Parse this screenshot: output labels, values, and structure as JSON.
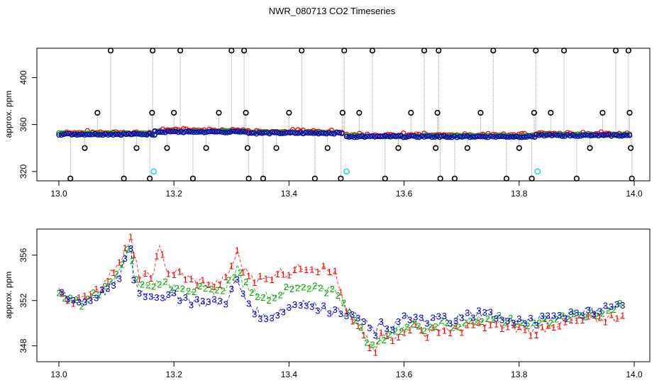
{
  "title": "NWR_080713  CO2 Timeseries",
  "chart_data": [
    {
      "type": "scatter",
      "title": "NWR_080713  CO2 Timeseries",
      "xlabel": "",
      "ylabel": "approx. ppm",
      "xlim": [
        13.0,
        14.0
      ],
      "ylim": [
        312,
        425
      ],
      "x_ticks": [
        "13.0",
        "13.2",
        "13.4",
        "13.6",
        "13.8",
        "14.0"
      ],
      "y_ticks": [
        "320",
        "360",
        "400"
      ],
      "colors": {
        "series1": "#ff0000",
        "series2": "#00aa00",
        "series3": "#0000cc",
        "markers": "#000000",
        "flag": "#33dddd",
        "connector": "#999999"
      },
      "segments": [
        {
          "x_start": 13.0,
          "x_end": 13.167,
          "level": 352
        },
        {
          "x_start": 13.167,
          "x_end": 13.33,
          "level": 354
        },
        {
          "x_start": 13.33,
          "x_end": 13.495,
          "level": 353
        },
        {
          "x_start": 13.5,
          "x_end": 13.665,
          "level": 350
        },
        {
          "x_start": 13.665,
          "x_end": 13.83,
          "level": 350
        },
        {
          "x_start": 13.83,
          "x_end": 13.995,
          "level": 351
        }
      ],
      "cal_markers": [
        {
          "x": 13.02,
          "y": 314
        },
        {
          "x": 13.045,
          "y": 340
        },
        {
          "x": 13.067,
          "y": 370
        },
        {
          "x": 13.09,
          "y": 423
        },
        {
          "x": 13.113,
          "y": 314
        },
        {
          "x": 13.135,
          "y": 340
        },
        {
          "x": 13.158,
          "y": 314
        },
        {
          "x": 13.162,
          "y": 370
        },
        {
          "x": 13.163,
          "y": 423
        },
        {
          "x": 13.188,
          "y": 340
        },
        {
          "x": 13.2,
          "y": 370
        },
        {
          "x": 13.211,
          "y": 423
        },
        {
          "x": 13.233,
          "y": 314
        },
        {
          "x": 13.256,
          "y": 340
        },
        {
          "x": 13.278,
          "y": 370
        },
        {
          "x": 13.3,
          "y": 423
        },
        {
          "x": 13.322,
          "y": 423
        },
        {
          "x": 13.325,
          "y": 370
        },
        {
          "x": 13.328,
          "y": 340
        },
        {
          "x": 13.33,
          "y": 314
        },
        {
          "x": 13.355,
          "y": 314
        },
        {
          "x": 13.378,
          "y": 340
        },
        {
          "x": 13.4,
          "y": 370
        },
        {
          "x": 13.422,
          "y": 423
        },
        {
          "x": 13.445,
          "y": 314
        },
        {
          "x": 13.467,
          "y": 340
        },
        {
          "x": 13.49,
          "y": 314
        },
        {
          "x": 13.493,
          "y": 370
        },
        {
          "x": 13.496,
          "y": 423
        },
        {
          "x": 13.522,
          "y": 370
        },
        {
          "x": 13.545,
          "y": 423
        },
        {
          "x": 13.567,
          "y": 314
        },
        {
          "x": 13.59,
          "y": 340
        },
        {
          "x": 13.612,
          "y": 370
        },
        {
          "x": 13.635,
          "y": 423
        },
        {
          "x": 13.655,
          "y": 340
        },
        {
          "x": 13.658,
          "y": 370
        },
        {
          "x": 13.66,
          "y": 423
        },
        {
          "x": 13.663,
          "y": 314
        },
        {
          "x": 13.688,
          "y": 314
        },
        {
          "x": 13.71,
          "y": 340
        },
        {
          "x": 13.733,
          "y": 370
        },
        {
          "x": 13.755,
          "y": 423
        },
        {
          "x": 13.778,
          "y": 314
        },
        {
          "x": 13.8,
          "y": 340
        },
        {
          "x": 13.822,
          "y": 314
        },
        {
          "x": 13.826,
          "y": 370
        },
        {
          "x": 13.829,
          "y": 423
        },
        {
          "x": 13.855,
          "y": 370
        },
        {
          "x": 13.878,
          "y": 423
        },
        {
          "x": 13.9,
          "y": 314
        },
        {
          "x": 13.923,
          "y": 340
        },
        {
          "x": 13.945,
          "y": 370
        },
        {
          "x": 13.968,
          "y": 423
        },
        {
          "x": 13.99,
          "y": 423
        },
        {
          "x": 13.992,
          "y": 370
        },
        {
          "x": 13.994,
          "y": 340
        },
        {
          "x": 13.996,
          "y": 314
        }
      ],
      "flag_points": [
        {
          "x": 13.165,
          "y": 320
        },
        {
          "x": 13.5,
          "y": 320
        },
        {
          "x": 13.832,
          "y": 320
        }
      ]
    },
    {
      "type": "line",
      "xlabel": "",
      "ylabel": "approx. ppm",
      "xlim": [
        13.0,
        14.0
      ],
      "ylim": [
        346.6,
        358.3
      ],
      "x_ticks": [
        "13.0",
        "13.2",
        "13.4",
        "13.6",
        "13.8",
        "14.0"
      ],
      "y_ticks": [
        "348",
        "352",
        "356"
      ],
      "x": [
        13.0,
        13.02,
        13.04,
        13.06,
        13.08,
        13.1,
        13.125,
        13.13,
        13.14,
        13.16,
        13.175,
        13.19,
        13.21,
        13.23,
        13.25,
        13.27,
        13.29,
        13.31,
        13.32,
        13.34,
        13.36,
        13.38,
        13.4,
        13.42,
        13.44,
        13.46,
        13.48,
        13.5,
        13.52,
        13.54,
        13.55,
        13.56,
        13.58,
        13.6,
        13.62,
        13.64,
        13.66,
        13.68,
        13.7,
        13.72,
        13.74,
        13.76,
        13.78,
        13.8,
        13.82,
        13.84,
        13.86,
        13.88,
        13.9,
        13.92,
        13.94,
        13.96,
        13.98
      ],
      "series": [
        {
          "name": "1",
          "color": "#ff0000",
          "values": [
            352.8,
            352.2,
            352.0,
            352.8,
            353.5,
            355.2,
            357.4,
            356.0,
            354.2,
            354.0,
            356.5,
            354.6,
            354.4,
            353.8,
            353.6,
            353.4,
            353.9,
            356.2,
            354.8,
            354.0,
            353.8,
            354.6,
            354.4,
            355.0,
            355.0,
            354.8,
            354.3,
            350.8,
            350.0,
            348.0,
            347.4,
            349.0,
            348.8,
            349.5,
            349.8,
            349.0,
            349.6,
            349.4,
            349.5,
            349.8,
            350.0,
            349.9,
            349.6,
            349.5,
            349.2,
            349.5,
            349.9,
            350.0,
            350.2,
            350.3,
            350.4,
            350.5,
            350.7
          ]
        },
        {
          "name": "2",
          "color": "#00aa00",
          "values": [
            352.6,
            352.0,
            351.8,
            352.4,
            353.0,
            354.6,
            357.0,
            354.5,
            353.4,
            353.2,
            353.8,
            353.2,
            353.4,
            353.0,
            352.9,
            352.9,
            353.2,
            354.8,
            353.6,
            352.8,
            352.4,
            352.6,
            353.0,
            353.4,
            353.2,
            353.2,
            352.8,
            351.0,
            350.2,
            348.2,
            347.6,
            348.8,
            349.3,
            349.8,
            350.0,
            349.6,
            350.0,
            349.8,
            350.0,
            350.3,
            350.5,
            350.4,
            350.1,
            350.0,
            349.9,
            350.1,
            350.4,
            350.6,
            350.8,
            350.9,
            351.0,
            351.3,
            351.5
          ]
        },
        {
          "name": "3",
          "color": "#0000cc",
          "values": [
            352.9,
            352.1,
            351.9,
            352.3,
            352.8,
            353.6,
            356.8,
            353.8,
            352.9,
            352.5,
            352.6,
            352.2,
            352.4,
            352.0,
            351.8,
            351.8,
            352.0,
            353.8,
            352.4,
            351.2,
            350.4,
            351.0,
            351.4,
            352.0,
            351.6,
            351.4,
            351.0,
            351.0,
            350.6,
            349.6,
            349.2,
            349.8,
            349.8,
            350.4,
            350.4,
            350.0,
            350.6,
            350.4,
            350.6,
            350.8,
            351.0,
            350.6,
            350.3,
            350.2,
            350.1,
            350.3,
            350.6,
            350.8,
            351.0,
            351.1,
            351.3,
            351.4,
            351.6
          ]
        }
      ]
    }
  ]
}
